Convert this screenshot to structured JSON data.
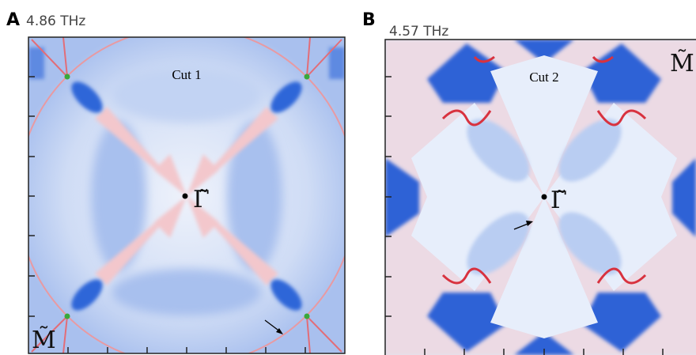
{
  "panel_a": {
    "label": "A",
    "frequency": "4.86 THz",
    "cut": "Cut 1",
    "center_point": "Γ̃",
    "corner_point": "M̃"
  },
  "panel_b": {
    "label": "B",
    "frequency": "4.57 THz",
    "cut": "Cut 2",
    "center_point": "Γ̃",
    "corner_point": "M̃"
  }
}
